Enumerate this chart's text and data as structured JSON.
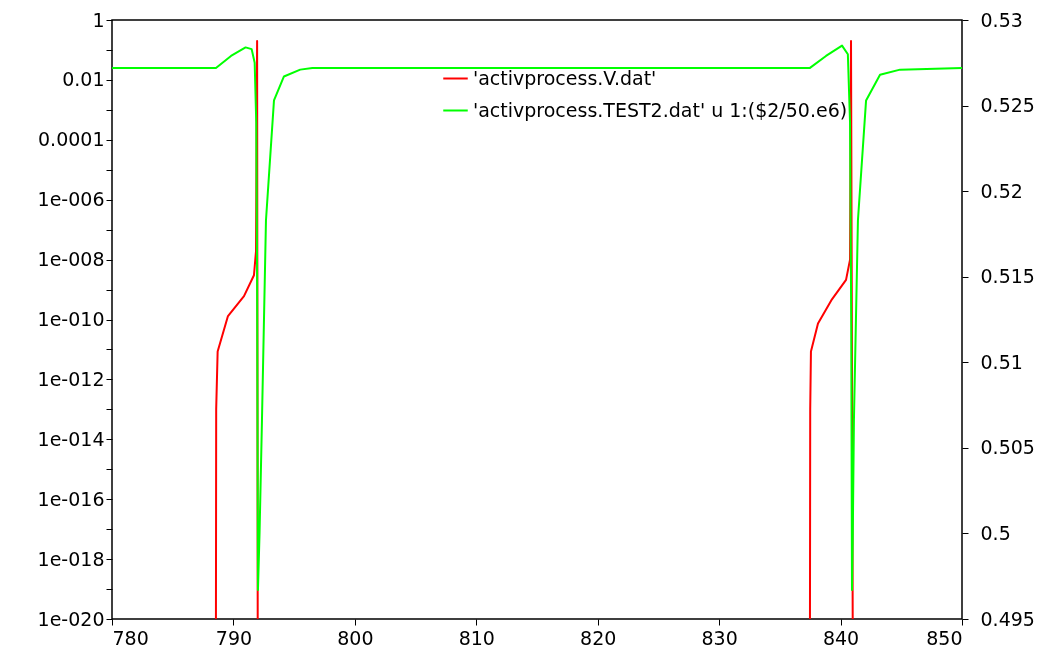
{
  "chart_data": {
    "type": "line",
    "log": "y",
    "grid": false,
    "legend": "top right",
    "marker": "none",
    "line_style": "solid",
    "xlim": [
      780,
      850
    ],
    "xticks": [
      780,
      790,
      800,
      810,
      820,
      830,
      840,
      850
    ],
    "ylim": [
      1e-20,
      1
    ],
    "yticks": [
      1,
      {
        "value": 0.1,
        "label": null
      },
      0.01,
      {
        "value": 0.001,
        "label": null
      },
      0.0001,
      {
        "value": 1e-05,
        "label": null
      },
      {
        "value": 1e-06,
        "label": "1e-006"
      },
      {
        "value": 1e-07,
        "label": null
      },
      {
        "value": 1e-08,
        "label": "1e-008"
      },
      {
        "value": 1e-09,
        "label": null
      },
      {
        "value": 1e-10,
        "label": "1e-010"
      },
      {
        "value": 1e-11,
        "label": null
      },
      {
        "value": 1e-12,
        "label": "1e-012"
      },
      {
        "value": 1e-13,
        "label": null
      },
      {
        "value": 1e-14,
        "label": "1e-014"
      },
      {
        "value": 1e-15,
        "label": null
      },
      {
        "value": 1e-16,
        "label": "1e-016"
      },
      {
        "value": 1e-17,
        "label": null
      },
      {
        "value": 1e-18,
        "label": "1e-018"
      },
      {
        "value": 1e-19,
        "label": null
      },
      {
        "value": 1e-20,
        "label": "1e-020"
      }
    ],
    "y2lim": [
      0.495,
      0.53
    ],
    "y2ticks": [
      0.495,
      0.5,
      0.505,
      0.51,
      0.515,
      0.52,
      0.525,
      0.53
    ],
    "series": [
      {
        "name": "'activprocess.V.dat'",
        "color": "#ff0000",
        "x": [
          788.56,
          788.58,
          788.7,
          789.55,
          790.87,
          791.69,
          791.86,
          791.95,
          792.0,
          815,
          837.48,
          837.5,
          837.56,
          838.14,
          839.29,
          840.45,
          840.78,
          840.86,
          841.0
        ],
        "values": [
          1e-20,
          1e-13,
          8.5e-12,
          1.3e-10,
          6e-10,
          3e-09,
          1.9e-08,
          0.2,
          1e-20,
          null,
          1e-20,
          1e-13,
          8.5e-12,
          7.4e-11,
          4.7e-10,
          2.1e-09,
          1e-08,
          0.2,
          1e-20
        ]
      },
      {
        "name": "'activprocess.TEST2.dat' u 1:($2/50.e6)",
        "color": "#00ff00",
        "axis": "y2",
        "x": [
          780,
          788.56,
          789.8,
          791.0,
          791.5,
          791.75,
          791.88,
          791.95,
          792.02,
          792.15,
          792.35,
          792.68,
          793.34,
          794.16,
          795.5,
          796.5,
          837.48,
          838.8,
          840.12,
          840.6,
          840.78,
          840.88,
          840.94,
          841.0,
          841.1,
          841.43,
          842.1,
          843.25,
          844.9,
          850
        ],
        "values": [
          0.5272,
          0.5272,
          0.5279,
          0.5284,
          0.5283,
          0.5275,
          0.524,
          0.515,
          0.4967,
          0.5,
          0.5066,
          0.5183,
          0.5253,
          0.5267,
          0.5271,
          0.5272,
          0.5272,
          0.5279,
          0.5285,
          0.528,
          0.524,
          0.512,
          0.4967,
          0.4995,
          0.5066,
          0.5183,
          0.5253,
          0.5268,
          0.5271,
          0.5272
        ]
      }
    ]
  }
}
